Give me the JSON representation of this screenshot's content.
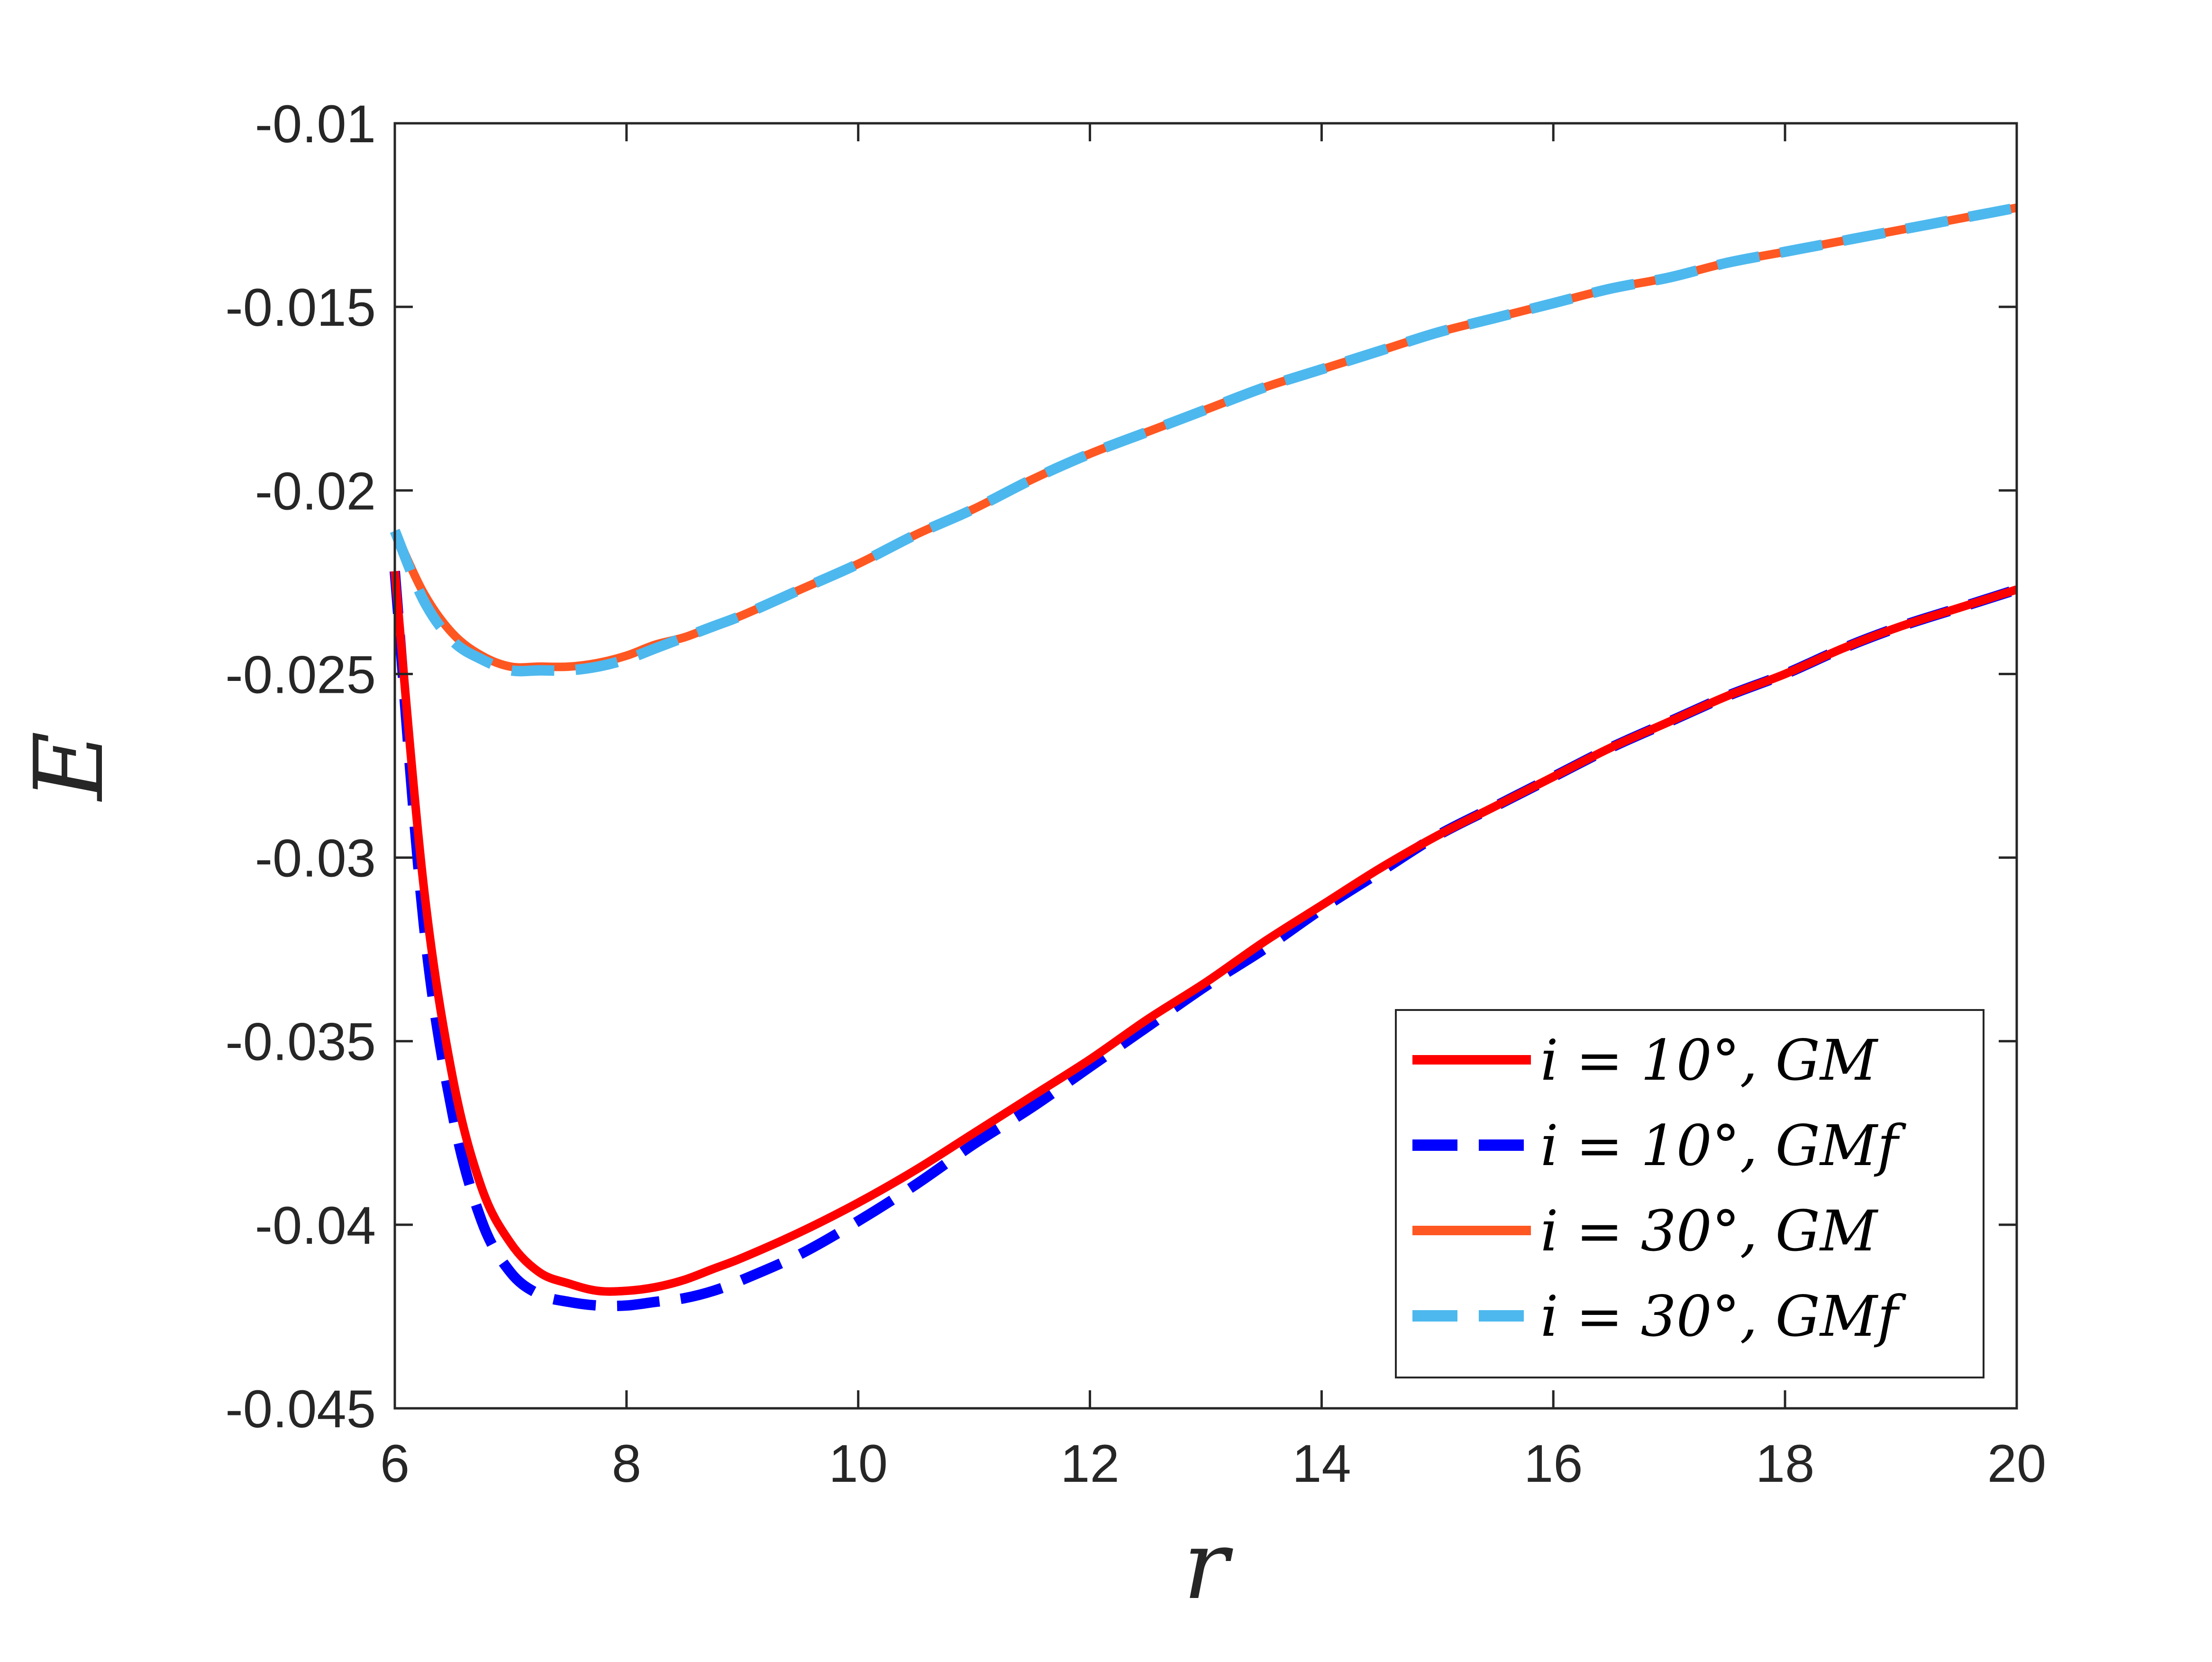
{
  "chart_data": {
    "type": "line",
    "title": "",
    "xlabel": "r",
    "ylabel": "E",
    "xlim": [
      6,
      20
    ],
    "ylim": [
      -0.045,
      -0.01
    ],
    "xticks": [
      "6",
      "8",
      "10",
      "12",
      "14",
      "16",
      "18",
      "20"
    ],
    "yticks": [
      "-0.01",
      "-0.015",
      "-0.02",
      "-0.025",
      "-0.03",
      "-0.035",
      "-0.04",
      "-0.045"
    ],
    "grid": false,
    "legend_position": "lower-right",
    "x": [
      6.0,
      6.25,
      6.5,
      6.75,
      7.0,
      7.25,
      7.5,
      7.75,
      8.0,
      8.25,
      8.5,
      8.75,
      9.0,
      9.5,
      10.0,
      10.5,
      11.0,
      11.5,
      12.0,
      12.5,
      13.0,
      13.5,
      14.0,
      14.5,
      15.0,
      15.5,
      16.0,
      16.5,
      17.0,
      17.5,
      18.0,
      18.5,
      19.0,
      19.5,
      20.0
    ],
    "series": [
      {
        "name": "i = 10°, GM",
        "color": "#ff0000",
        "dash": "solid",
        "values": [
          -0.0222,
          -0.0308,
          -0.036,
          -0.039,
          -0.0405,
          -0.0413,
          -0.0416,
          -0.0418,
          -0.0418,
          -0.0417,
          -0.0415,
          -0.0412,
          -0.0409,
          -0.0402,
          -0.0394,
          -0.0385,
          -0.0375,
          -0.0365,
          -0.0355,
          -0.0344,
          -0.0334,
          -0.0323,
          -0.0313,
          -0.0303,
          -0.0294,
          -0.0286,
          -0.0278,
          -0.027,
          -0.0263,
          -0.0256,
          -0.025,
          -0.0243,
          -0.0237,
          -0.0232,
          -0.0227
        ]
      },
      {
        "name": "i = 10°, GMf",
        "color": "#0000ff",
        "dash": "dashed",
        "values": [
          -0.0222,
          -0.0318,
          -0.037,
          -0.0399,
          -0.0413,
          -0.0419,
          -0.0421,
          -0.0422,
          -0.0422,
          -0.0421,
          -0.042,
          -0.0418,
          -0.0415,
          -0.0408,
          -0.0399,
          -0.0389,
          -0.0378,
          -0.0368,
          -0.0357,
          -0.0346,
          -0.0335,
          -0.0325,
          -0.0314,
          -0.0304,
          -0.0294,
          -0.0286,
          -0.0278,
          -0.027,
          -0.0263,
          -0.0256,
          -0.025,
          -0.0243,
          -0.0237,
          -0.0232,
          -0.0227
        ]
      },
      {
        "name": "i = 30°, GM",
        "color": "#ff5722",
        "dash": "solid",
        "values": [
          -0.0211,
          -0.0228,
          -0.0239,
          -0.0245,
          -0.0248,
          -0.0248,
          -0.0248,
          -0.0247,
          -0.0245,
          -0.0242,
          -0.024,
          -0.0237,
          -0.0234,
          -0.0227,
          -0.022,
          -0.0212,
          -0.0205,
          -0.0197,
          -0.019,
          -0.0184,
          -0.0178,
          -0.0172,
          -0.0167,
          -0.0162,
          -0.0157,
          -0.0153,
          -0.0149,
          -0.0145,
          -0.0142,
          -0.0138,
          -0.0135,
          -0.0132,
          -0.0129,
          -0.0126,
          -0.0123
        ]
      },
      {
        "name": "i = 30°, GMf",
        "color": "#4db8ee",
        "dash": "dashed",
        "values": [
          -0.0211,
          -0.023,
          -0.0241,
          -0.0246,
          -0.0249,
          -0.0249,
          -0.0249,
          -0.0248,
          -0.0246,
          -0.0243,
          -0.024,
          -0.0237,
          -0.0234,
          -0.0227,
          -0.022,
          -0.0212,
          -0.0205,
          -0.0197,
          -0.019,
          -0.0184,
          -0.0178,
          -0.0172,
          -0.0167,
          -0.0162,
          -0.0157,
          -0.0153,
          -0.0149,
          -0.0145,
          -0.0142,
          -0.0138,
          -0.0135,
          -0.0132,
          -0.0129,
          -0.0126,
          -0.0123
        ]
      }
    ]
  }
}
